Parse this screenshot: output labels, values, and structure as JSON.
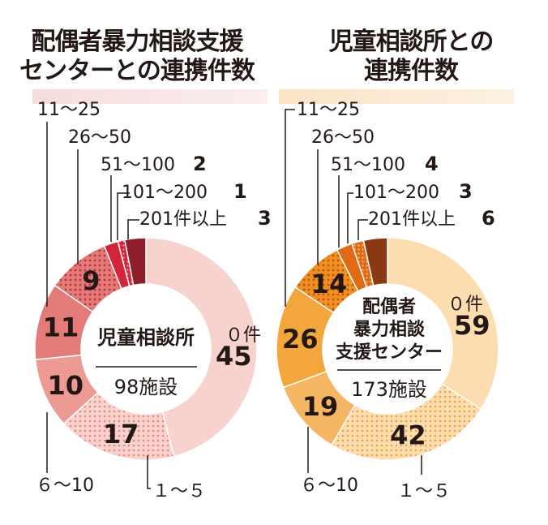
{
  "colors": {
    "left": [
      "#f8d2cc",
      "#ee9a94",
      "#e37c78",
      "#dd5a5a",
      "#d4243c",
      "#b81a2d",
      "#8e1f2a"
    ],
    "right": [
      "#fbddb0",
      "#f6b562",
      "#f3a63c",
      "#ef9020",
      "#e36a14",
      "#c9520f",
      "#8a3a12"
    ],
    "text": "#231815"
  },
  "chart_data": [
    {
      "type": "pie",
      "title": [
        "配偶者暴力相談支援",
        "センターとの連携件数"
      ],
      "center_label": "児童相談所",
      "center_total": "98施設",
      "slices": [
        {
          "category": "０件",
          "value": 45,
          "label": "45"
        },
        {
          "category": "１～５",
          "value": 17,
          "label": "17"
        },
        {
          "category": "６～10",
          "value": 10,
          "label": "10"
        },
        {
          "category": "11～25",
          "value": 11,
          "label": "11"
        },
        {
          "category": "26～50",
          "value": 9,
          "label": "9"
        },
        {
          "category": "51～100",
          "value": 2,
          "label": "2"
        },
        {
          "category": "101～200",
          "value": 1,
          "label": "1"
        },
        {
          "category": "201件以上",
          "value": 3,
          "label": "3"
        }
      ]
    },
    {
      "type": "pie",
      "title": [
        "児童相談所との",
        "連携件数"
      ],
      "center_label": [
        "配偶者",
        "暴力相談",
        "支援センター"
      ],
      "center_total": "173施設",
      "slices": [
        {
          "category": "０件",
          "value": 59,
          "label": "59"
        },
        {
          "category": "１～５",
          "value": 42,
          "label": "42"
        },
        {
          "category": "６～10",
          "value": 19,
          "label": "19"
        },
        {
          "category": "11～25",
          "value": 26,
          "label": "26"
        },
        {
          "category": "26～50",
          "value": 14,
          "label": "14"
        },
        {
          "category": "51～100",
          "value": 4,
          "label": "4"
        },
        {
          "category": "101～200",
          "value": 3,
          "label": "3"
        },
        {
          "category": "201件以上",
          "value": 6,
          "label": "6"
        }
      ]
    }
  ]
}
